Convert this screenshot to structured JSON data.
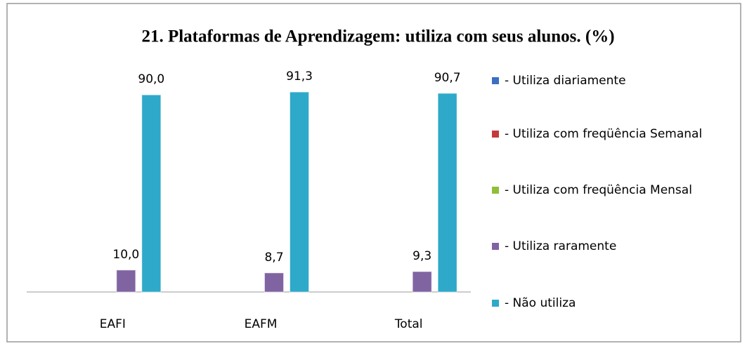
{
  "chart_data": {
    "type": "bar",
    "title": "21. Plataformas de Aprendizagem:  utiliza com seus alunos. (%)",
    "categories": [
      "EAFI",
      "EAFM",
      "Total"
    ],
    "ylim": [
      0,
      100
    ],
    "series": [
      {
        "name": "- Utiliza diariamente",
        "color": "#3a6fc4",
        "values": [
          null,
          null,
          null
        ]
      },
      {
        "name": "- Utiliza com freqüência Semanal",
        "color": "#c43a3a",
        "values": [
          null,
          null,
          null
        ]
      },
      {
        "name": "- Utiliza com freqüência Mensal",
        "color": "#8fbf3a",
        "values": [
          null,
          null,
          null
        ]
      },
      {
        "name": "- Utiliza  raramente",
        "color": "#8064a2",
        "values": [
          10,
          8.7,
          9.3
        ],
        "value_labels": [
          "10,0",
          "8,7",
          "9,3"
        ]
      },
      {
        "name": "- Não utiliza",
        "color": "#2fa9c9",
        "values": [
          90,
          91.3,
          90.7
        ],
        "value_labels": [
          "90,0",
          "91,3",
          "90,7"
        ]
      }
    ],
    "legend": "right"
  }
}
